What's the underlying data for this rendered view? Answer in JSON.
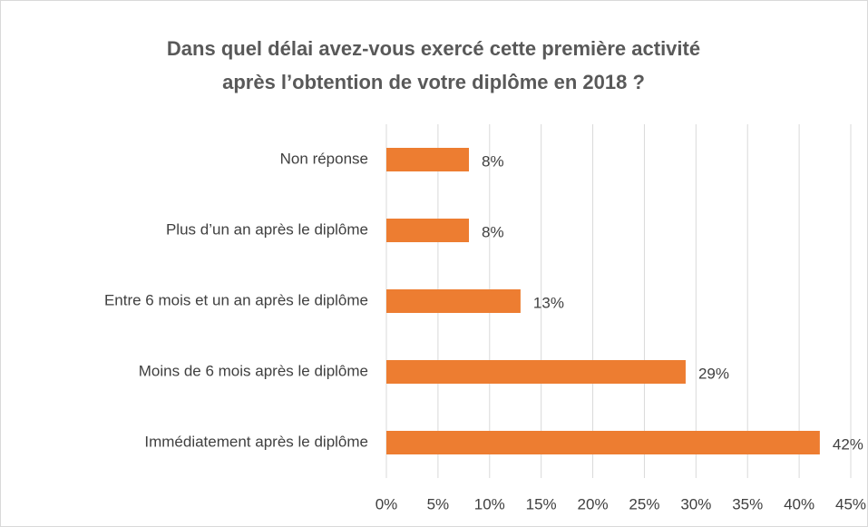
{
  "chart_data": {
    "type": "bar",
    "orientation": "horizontal",
    "title": [
      "Dans quel délai avez-vous exercé cette première activité",
      "après l’obtention de votre diplôme en 2018 ?"
    ],
    "categories": [
      "Non réponse",
      "Plus d’un an après le diplôme",
      "Entre 6 mois et un an après le diplôme",
      "Moins de 6 mois après le diplôme",
      "Immédiatement après le diplôme"
    ],
    "values": [
      8,
      8,
      13,
      29,
      42
    ],
    "value_labels": [
      "8%",
      "8%",
      "13%",
      "29%",
      "42%"
    ],
    "color": "#ed7d31",
    "xlim": [
      0,
      45
    ],
    "xticks": [
      {
        "value": 0,
        "label": "0%"
      },
      {
        "value": 5,
        "label": "5%"
      },
      {
        "value": 10,
        "label": "10%"
      },
      {
        "value": 15,
        "label": "15%"
      },
      {
        "value": 20,
        "label": "20%"
      },
      {
        "value": 25,
        "label": "25%"
      },
      {
        "value": 30,
        "label": "30%"
      },
      {
        "value": 35,
        "label": "35%"
      },
      {
        "value": 40,
        "label": "40%"
      },
      {
        "value": 45,
        "label": "45%"
      }
    ],
    "grid": true
  }
}
